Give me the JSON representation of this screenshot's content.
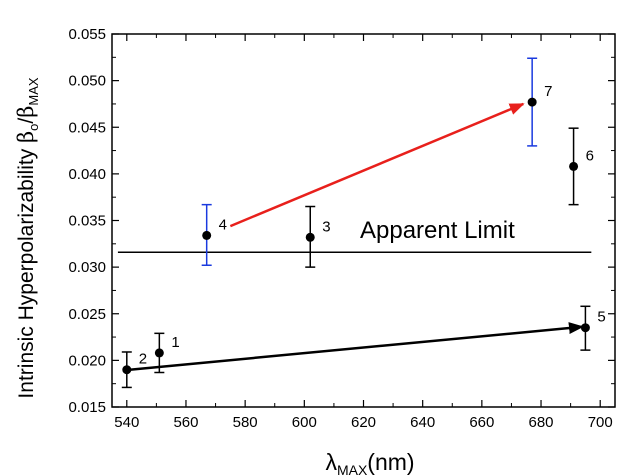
{
  "chart_data": {
    "type": "scatter",
    "title": "",
    "xlabel": {
      "symbol": "λ",
      "subscript": "MAX",
      "suffix": "(nm)"
    },
    "ylabel": {
      "prefix": "Intrinsic Hyperpolarizability ",
      "beta": "β",
      "sub_o": "o",
      "slash": "/",
      "sub_max": "MAX"
    },
    "xlim": [
      535,
      705
    ],
    "ylim": [
      0.015,
      0.055
    ],
    "xticks": [
      540,
      560,
      580,
      600,
      620,
      640,
      660,
      680,
      700
    ],
    "yticks": [
      0.015,
      0.02,
      0.025,
      0.03,
      0.035,
      0.04,
      0.045,
      0.05,
      0.055
    ],
    "ytick_labels": [
      "0.015",
      "0.020",
      "0.025",
      "0.030",
      "0.035",
      "0.040",
      "0.045",
      "0.050",
      "0.055"
    ],
    "grid": false,
    "points": [
      {
        "label": "1",
        "x": 551,
        "y": 0.0208,
        "ylow": 0.0187,
        "yhigh": 0.0229,
        "errcolor": "#000000"
      },
      {
        "label": "2",
        "x": 540,
        "y": 0.019,
        "ylow": 0.0171,
        "yhigh": 0.0209,
        "errcolor": "#000000"
      },
      {
        "label": "3",
        "x": 602,
        "y": 0.0332,
        "ylow": 0.03,
        "yhigh": 0.0365,
        "errcolor": "#000000"
      },
      {
        "label": "4",
        "x": 567,
        "y": 0.0334,
        "ylow": 0.0302,
        "yhigh": 0.0367,
        "errcolor": "#1a3adf"
      },
      {
        "label": "5",
        "x": 695,
        "y": 0.0235,
        "ylow": 0.0211,
        "yhigh": 0.0258,
        "errcolor": "#000000"
      },
      {
        "label": "6",
        "x": 691,
        "y": 0.0408,
        "ylow": 0.0367,
        "yhigh": 0.0449,
        "errcolor": "#000000"
      },
      {
        "label": "7",
        "x": 677,
        "y": 0.0477,
        "ylow": 0.043,
        "yhigh": 0.0524,
        "errcolor": "#1a3adf"
      }
    ],
    "reference_line": {
      "y": 0.0316,
      "label": "Apparent Limit"
    },
    "arrows": [
      {
        "from": [
          541,
          0.019
        ],
        "to": [
          694,
          0.0236
        ],
        "color": "#000000"
      },
      {
        "from": [
          575,
          0.0344
        ],
        "to": [
          674,
          0.0475
        ],
        "color": "#e8201c"
      }
    ]
  }
}
